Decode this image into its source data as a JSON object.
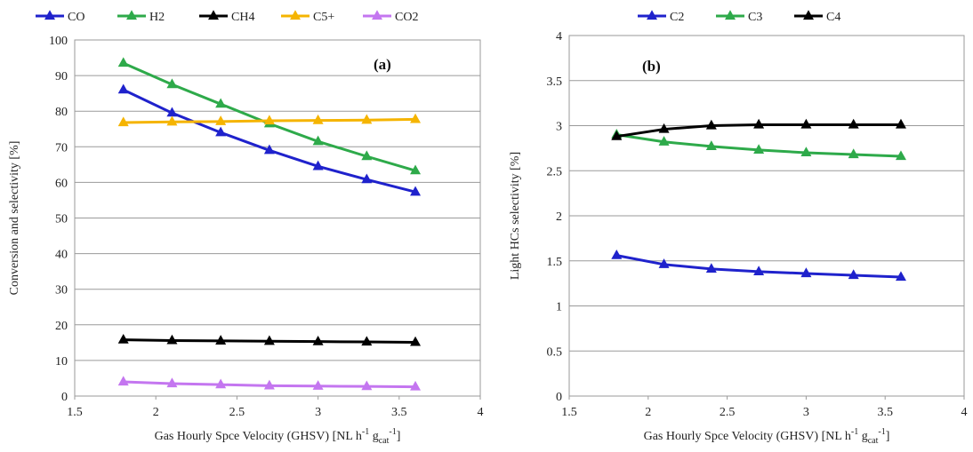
{
  "chart_data": [
    {
      "type": "line",
      "panel_label": "(a)",
      "xlabel": "Gas Hourly Spce Velocity (GHSV) [NL h-1 gcat-1]",
      "ylabel": "Conversion and selectivity [%]",
      "xlim": [
        1.5,
        4
      ],
      "ylim": [
        0,
        100
      ],
      "xticks": [
        "1.5",
        "2",
        "2.5",
        "3",
        "3.5",
        "4"
      ],
      "yticks": [
        "0",
        "10",
        "20",
        "30",
        "40",
        "50",
        "60",
        "70",
        "80",
        "90",
        "100"
      ],
      "grid": "horizontal",
      "legend_position": "top",
      "x": [
        1.8,
        2.1,
        2.4,
        2.7,
        3.0,
        3.3,
        3.6
      ],
      "series": [
        {
          "name": "CO",
          "color": "#1f22cc",
          "marker": "triangle",
          "values": [
            86,
            79.5,
            74,
            69,
            64.5,
            60.8,
            57.3
          ]
        },
        {
          "name": "H2",
          "color": "#2eaa4a",
          "marker": "triangle",
          "values": [
            93.5,
            87.5,
            82,
            76.5,
            71.5,
            67.3,
            63.3
          ]
        },
        {
          "name": "CH4",
          "color": "#000000",
          "marker": "triangle",
          "values": [
            15.8,
            15.6,
            15.5,
            15.4,
            15.3,
            15.2,
            15.1
          ]
        },
        {
          "name": "C5+",
          "color": "#f5b400",
          "marker": "triangle",
          "values": [
            76.8,
            77,
            77.1,
            77.3,
            77.4,
            77.5,
            77.7
          ]
        },
        {
          "name": "CO2",
          "color": "#c476f0",
          "marker": "triangle",
          "values": [
            4,
            3.5,
            3.2,
            2.9,
            2.8,
            2.7,
            2.6
          ]
        }
      ]
    },
    {
      "type": "line",
      "panel_label": "(b)",
      "xlabel": "Gas Hourly Spce Velocity (GHSV) [NL h-1 gcat-1]",
      "ylabel": "Light HCs selectivity [%]",
      "xlim": [
        1.5,
        4
      ],
      "ylim": [
        0,
        4
      ],
      "xticks": [
        "1.5",
        "2",
        "2.5",
        "3",
        "3.5",
        "4"
      ],
      "yticks": [
        "0",
        "0.5",
        "1",
        "1.5",
        "2",
        "2.5",
        "3",
        "3.5",
        "4"
      ],
      "grid": "horizontal",
      "legend_position": "top",
      "x": [
        1.8,
        2.1,
        2.4,
        2.7,
        3.0,
        3.3,
        3.6
      ],
      "series": [
        {
          "name": "C2",
          "color": "#1f22cc",
          "marker": "triangle",
          "values": [
            1.56,
            1.46,
            1.41,
            1.38,
            1.36,
            1.34,
            1.32
          ]
        },
        {
          "name": "C3",
          "color": "#2eaa4a",
          "marker": "triangle",
          "values": [
            2.9,
            2.82,
            2.77,
            2.73,
            2.7,
            2.68,
            2.66
          ]
        },
        {
          "name": "C4",
          "color": "#000000",
          "marker": "triangle",
          "values": [
            2.88,
            2.96,
            3.0,
            3.01,
            3.01,
            3.01,
            3.01
          ]
        }
      ]
    }
  ]
}
